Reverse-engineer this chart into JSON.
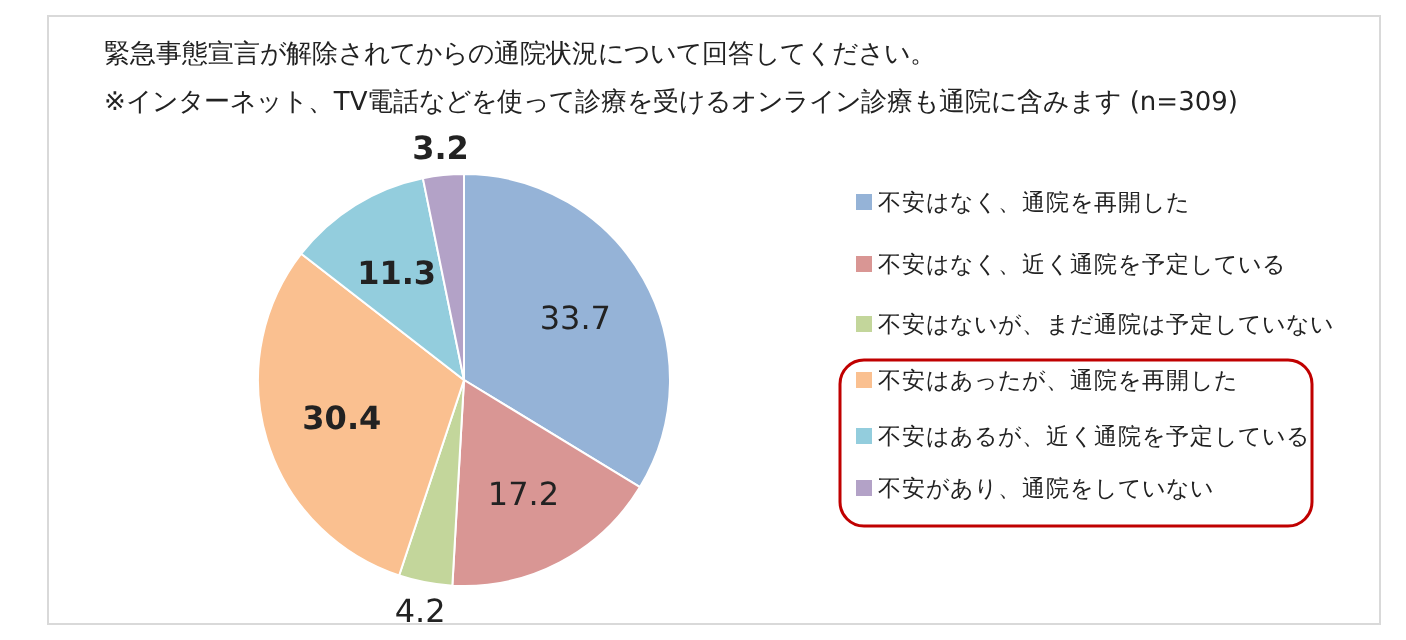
{
  "chart_data": {
    "type": "pie",
    "title": "緊急事態宣言が解除されてからの通院状況について回答してください。",
    "subtitle": "※インターネット、TV電話などを使って診療を受けるオンライン診療も通院に含みます (n=309)",
    "categories": [
      "不安はなく、通院を再開した",
      "不安はなく、近く通院を予定している",
      "不安はないが、まだ通院は予定していない",
      "不安はあったが、通院を再開した",
      "不安はあるが、近く通院を予定している",
      "不安があり、通院をしていない"
    ],
    "values": [
      33.7,
      17.2,
      4.2,
      30.4,
      11.3,
      3.2
    ],
    "colors": [
      "#95b3d7",
      "#d99694",
      "#c3d69b",
      "#fac090",
      "#93cddd",
      "#b3a2c7"
    ],
    "data_labels": true,
    "legend": "right"
  }
}
